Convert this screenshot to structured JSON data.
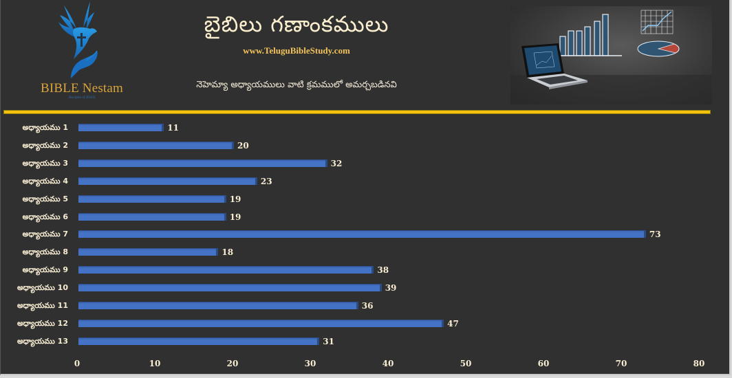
{
  "header": {
    "logo": {
      "name": "BIBLE Nestam",
      "tagline": "Disciples of JESUS",
      "icon": "dove-cross-hand-icon"
    },
    "title": "బైబిలు గణాంకములు",
    "website": "www.TeluguBibleStudy.com",
    "subtitle": "నెహెమ్యా అధ్యాయములు వాటి క్రమములో అమర్చబడినవి",
    "hero_image": "laptop-with-charts-illustration"
  },
  "colors": {
    "background": "#303030",
    "bar": "#4472c4",
    "bar_edge": "#2c4c86",
    "divider": "#f4c20d",
    "text": "#f8ecd2",
    "website": "#f2c35a",
    "logo_text": "#d9a43a",
    "logo_icon": "#1e88d6"
  },
  "chart_data": {
    "type": "bar",
    "orientation": "horizontal",
    "title": "బైబిలు గణాంకములు",
    "subtitle": "నెహెమ్యా అధ్యాయములు వాటి క్రమములో అమర్చబడినవి",
    "xlabel": "",
    "ylabel": "",
    "categories": [
      "అధ్యాయము 1",
      "అధ్యాయము 2",
      "అధ్యాయము 3",
      "అధ్యాయము 4",
      "అధ్యాయము 5",
      "అధ్యాయము 6",
      "అధ్యాయము 7",
      "అధ్యాయము 8",
      "అధ్యాయము 9",
      "అధ్యాయము 10",
      "అధ్యాయము 11",
      "అధ్యాయము 12",
      "అధ్యాయము 13"
    ],
    "values": [
      11,
      20,
      32,
      23,
      19,
      19,
      73,
      18,
      38,
      39,
      36,
      47,
      31
    ],
    "xlim": [
      0,
      80
    ],
    "xticks": [
      "0",
      "10",
      "20",
      "30",
      "40",
      "50",
      "60",
      "70",
      "80"
    ],
    "grid": false,
    "legend": null,
    "data_labels": true
  }
}
